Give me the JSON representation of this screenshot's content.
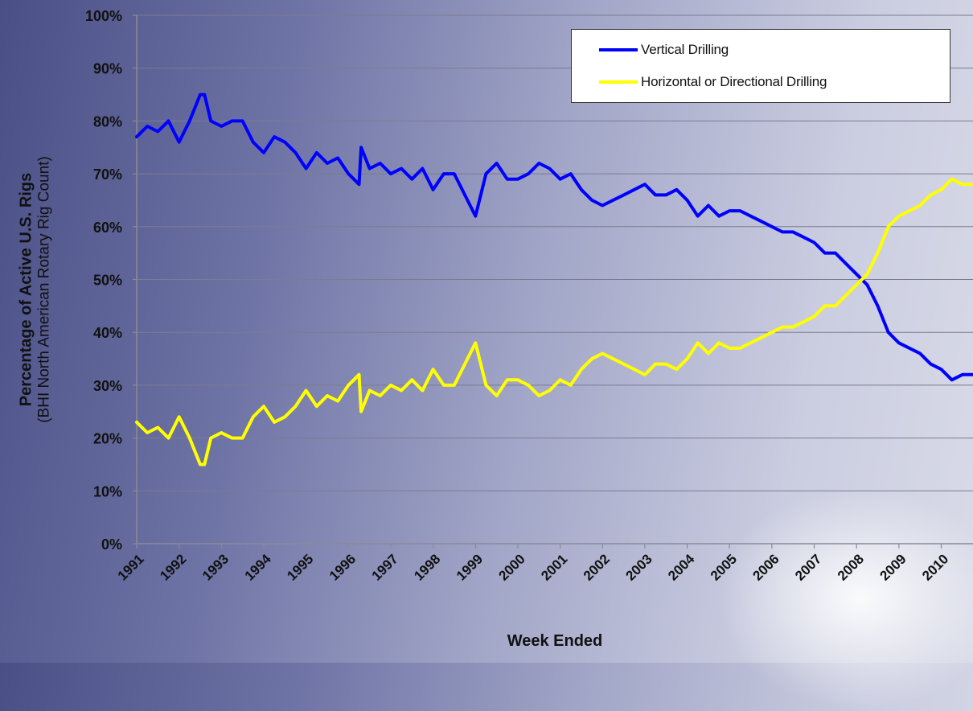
{
  "chart_data": {
    "type": "line",
    "xlabel": "Week Ended",
    "ylabel_main": "Percentage of Active U.S. Rigs",
    "ylabel_sub": "(BHI North American Rotary Rig Count)",
    "ylim": [
      0,
      100
    ],
    "xlim": [
      1991.0,
      2010.75
    ],
    "y_ticks": [
      0,
      10,
      20,
      30,
      40,
      50,
      60,
      70,
      80,
      90,
      100
    ],
    "y_tick_labels": [
      "0%",
      "10%",
      "20%",
      "30%",
      "40%",
      "50%",
      "60%",
      "70%",
      "80%",
      "90%",
      "100%"
    ],
    "x_ticks": [
      1991,
      1992,
      1993,
      1994,
      1995,
      1996,
      1997,
      1998,
      1999,
      2000,
      2001,
      2002,
      2003,
      2004,
      2005,
      2006,
      2007,
      2008,
      2009,
      2010
    ],
    "x_tick_labels": [
      "1991",
      "1992",
      "1993",
      "1994",
      "1995",
      "1996",
      "1997",
      "1998",
      "1999",
      "2000",
      "2001",
      "2002",
      "2003",
      "2004",
      "2005",
      "2006",
      "2007",
      "2008",
      "2009",
      "2010"
    ],
    "grid": true,
    "legend_position": "top-right",
    "series": [
      {
        "name": "Vertical Drilling",
        "color": "#0000ff",
        "x": [
          1991.0,
          1991.25,
          1991.5,
          1991.75,
          1992.0,
          1992.25,
          1992.5,
          1992.6,
          1992.75,
          1993.0,
          1993.25,
          1993.5,
          1993.75,
          1994.0,
          1994.25,
          1994.5,
          1994.75,
          1995.0,
          1995.25,
          1995.5,
          1995.75,
          1996.0,
          1996.25,
          1996.3,
          1996.5,
          1996.75,
          1997.0,
          1997.25,
          1997.5,
          1997.75,
          1998.0,
          1998.25,
          1998.5,
          1998.75,
          1999.0,
          1999.25,
          1999.5,
          1999.75,
          2000.0,
          2000.25,
          2000.5,
          2000.75,
          2001.0,
          2001.25,
          2001.5,
          2001.75,
          2002.0,
          2002.25,
          2002.5,
          2002.75,
          2003.0,
          2003.25,
          2003.5,
          2003.75,
          2004.0,
          2004.25,
          2004.5,
          2004.75,
          2005.0,
          2005.25,
          2005.5,
          2005.75,
          2006.0,
          2006.25,
          2006.5,
          2006.75,
          2007.0,
          2007.25,
          2007.5,
          2007.75,
          2008.0,
          2008.25,
          2008.5,
          2008.75,
          2009.0,
          2009.25,
          2009.5,
          2009.75,
          2010.0,
          2010.25,
          2010.5,
          2010.75
        ],
        "y": [
          77,
          79,
          78,
          80,
          76,
          80,
          85,
          85,
          80,
          79,
          80,
          80,
          76,
          74,
          77,
          76,
          74,
          71,
          74,
          72,
          73,
          70,
          68,
          75,
          71,
          72,
          70,
          71,
          69,
          71,
          67,
          70,
          70,
          66,
          62,
          70,
          72,
          69,
          69,
          70,
          72,
          71,
          69,
          70,
          67,
          65,
          64,
          65,
          66,
          67,
          68,
          66,
          66,
          67,
          65,
          62,
          64,
          62,
          63,
          63,
          62,
          61,
          60,
          59,
          59,
          58,
          57,
          55,
          55,
          53,
          51,
          49,
          45,
          40,
          38,
          37,
          36,
          34,
          33,
          31,
          32,
          32
        ]
      },
      {
        "name": "Horizontal or Directional Drilling",
        "color": "#ffff00",
        "x": [
          1991.0,
          1991.25,
          1991.5,
          1991.75,
          1992.0,
          1992.25,
          1992.5,
          1992.6,
          1992.75,
          1993.0,
          1993.25,
          1993.5,
          1993.75,
          1994.0,
          1994.25,
          1994.5,
          1994.75,
          1995.0,
          1995.25,
          1995.5,
          1995.75,
          1996.0,
          1996.25,
          1996.3,
          1996.5,
          1996.75,
          1997.0,
          1997.25,
          1997.5,
          1997.75,
          1998.0,
          1998.25,
          1998.5,
          1998.75,
          1999.0,
          1999.25,
          1999.5,
          1999.75,
          2000.0,
          2000.25,
          2000.5,
          2000.75,
          2001.0,
          2001.25,
          2001.5,
          2001.75,
          2002.0,
          2002.25,
          2002.5,
          2002.75,
          2003.0,
          2003.25,
          2003.5,
          2003.75,
          2004.0,
          2004.25,
          2004.5,
          2004.75,
          2005.0,
          2005.25,
          2005.5,
          2005.75,
          2006.0,
          2006.25,
          2006.5,
          2006.75,
          2007.0,
          2007.25,
          2007.5,
          2007.75,
          2008.0,
          2008.25,
          2008.5,
          2008.75,
          2009.0,
          2009.25,
          2009.5,
          2009.75,
          2010.0,
          2010.25,
          2010.5,
          2010.75
        ],
        "y": [
          23,
          21,
          22,
          20,
          24,
          20,
          15,
          15,
          20,
          21,
          20,
          20,
          24,
          26,
          23,
          24,
          26,
          29,
          26,
          28,
          27,
          30,
          32,
          25,
          29,
          28,
          30,
          29,
          31,
          29,
          33,
          30,
          30,
          34,
          38,
          30,
          28,
          31,
          31,
          30,
          28,
          29,
          31,
          30,
          33,
          35,
          36,
          35,
          34,
          33,
          32,
          34,
          34,
          33,
          35,
          38,
          36,
          38,
          37,
          37,
          38,
          39,
          40,
          41,
          41,
          42,
          43,
          45,
          45,
          47,
          49,
          51,
          55,
          60,
          62,
          63,
          64,
          66,
          67,
          69,
          68,
          68
        ]
      }
    ]
  }
}
